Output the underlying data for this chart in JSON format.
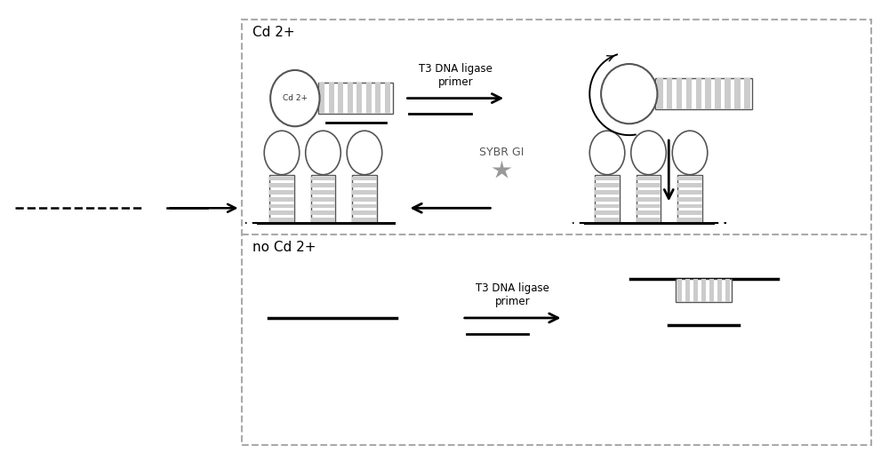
{
  "bg_color": "#ffffff",
  "border_color": "#aaaaaa",
  "text_color": "#000000",
  "gray_color": "#999999",
  "title_cd": "Cd 2+",
  "title_no_cd": "no Cd 2+",
  "label_t3_1": "T3 DNA ligase\nprimer",
  "label_t3_2": "T3 DNA ligase\nprimer",
  "label_sybr": "SYBR GI",
  "dna_stripe_color": "#cccccc",
  "dna_border_color": "#555555",
  "arrow_color": "#000000",
  "star_color": "#999999",
  "cd_label": "Cd 2+"
}
